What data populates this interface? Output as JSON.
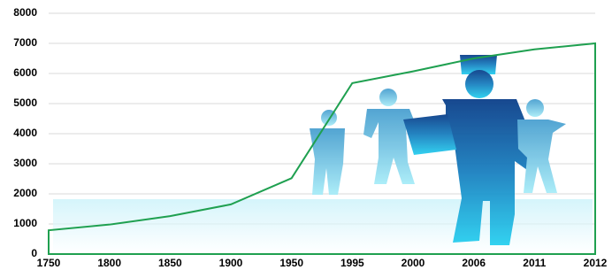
{
  "chart_data": {
    "type": "area",
    "categories": [
      "1750",
      "1800",
      "1850",
      "1900",
      "1950",
      "1995",
      "2000",
      "2006",
      "2011",
      "2012"
    ],
    "values": [
      790,
      980,
      1260,
      1650,
      2520,
      5680,
      6070,
      6500,
      6800,
      7000
    ],
    "color": "#1fa050",
    "ylim": [
      0,
      8000
    ],
    "yticks": [
      0,
      1000,
      2000,
      3000,
      4000,
      5000,
      6000,
      7000,
      8000
    ],
    "grid": true
  }
}
